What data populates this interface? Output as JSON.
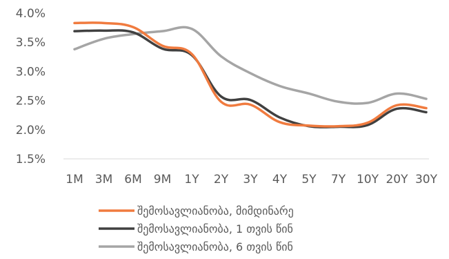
{
  "chart_data": {
    "type": "line",
    "title": "",
    "xlabel": "",
    "ylabel": "",
    "categories": [
      "1M",
      "3M",
      "6M",
      "9M",
      "1Y",
      "2Y",
      "3Y",
      "4Y",
      "5Y",
      "7Y",
      "10Y",
      "20Y",
      "30Y"
    ],
    "ylim": [
      1.5,
      4.0
    ],
    "yticks": [
      1.5,
      2.0,
      2.5,
      3.0,
      3.5,
      4.0
    ],
    "ytick_labels": [
      "1.5%",
      "2.0%",
      "2.5%",
      "3.0%",
      "3.5%",
      "4.0%"
    ],
    "grid": false,
    "smooth": true,
    "legend_position": "bottom",
    "series": [
      {
        "name": "შემოსავლიანობა, მიმდინარე",
        "color": "#F07B3F",
        "values": [
          3.83,
          3.83,
          3.76,
          3.44,
          3.3,
          2.48,
          2.43,
          2.13,
          2.07,
          2.06,
          2.12,
          2.42,
          2.37
        ]
      },
      {
        "name": "შემოსავლიანობა, 1 თვის წინ",
        "color": "#404040",
        "values": [
          3.69,
          3.7,
          3.67,
          3.39,
          3.28,
          2.57,
          2.51,
          2.21,
          2.06,
          2.05,
          2.08,
          2.36,
          2.3
        ]
      },
      {
        "name": "შემოსავლიანობა, 6 თვის წინ",
        "color": "#A5A5A5",
        "values": [
          3.38,
          3.56,
          3.64,
          3.69,
          3.73,
          3.26,
          2.97,
          2.75,
          2.62,
          2.48,
          2.46,
          2.62,
          2.53
        ]
      }
    ]
  }
}
